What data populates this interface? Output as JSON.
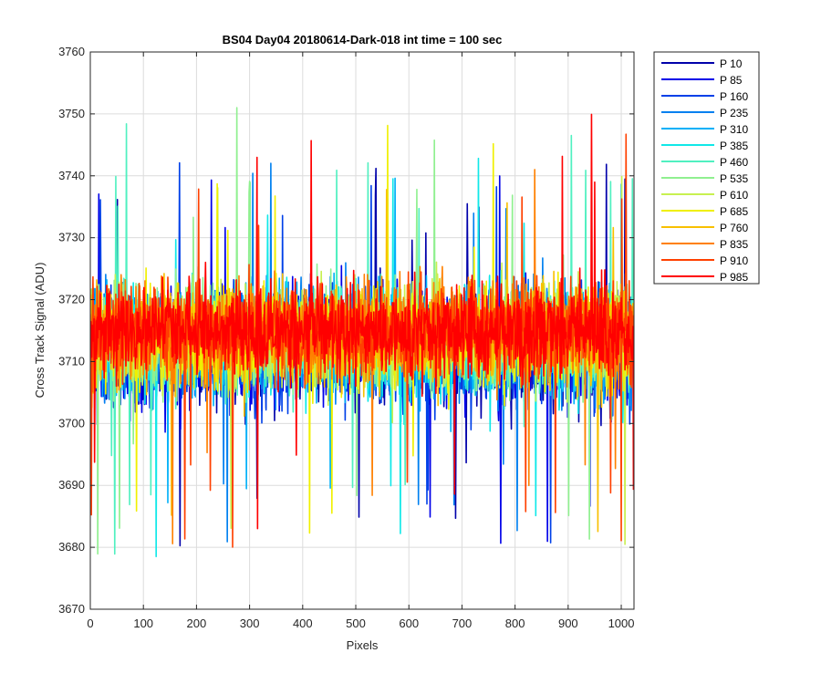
{
  "chart_data": {
    "type": "line",
    "title": "BS04 Day04 20180614-Dark-018 int time = 100 sec",
    "xlabel": "Pixels",
    "ylabel": "Cross Track Signal (ADU)",
    "xlim": [
      0,
      1024
    ],
    "ylim": [
      3670,
      3760
    ],
    "xticks": [
      0,
      100,
      200,
      300,
      400,
      500,
      600,
      700,
      800,
      900,
      1000
    ],
    "yticks": [
      3670,
      3680,
      3690,
      3700,
      3710,
      3720,
      3730,
      3740,
      3750,
      3760
    ],
    "grid": true,
    "legend_position": "outside-top-right",
    "series": [
      {
        "name": "P 10",
        "color": "#0000AA",
        "center": 3712,
        "spread": 13
      },
      {
        "name": "P 85",
        "color": "#0000E8",
        "center": 3712,
        "spread": 14
      },
      {
        "name": "P 160",
        "color": "#0040E8",
        "center": 3712,
        "spread": 13
      },
      {
        "name": "P 235",
        "color": "#0080F0",
        "center": 3713,
        "spread": 13
      },
      {
        "name": "P 310",
        "color": "#00B0F8",
        "center": 3713,
        "spread": 13
      },
      {
        "name": "P 385",
        "color": "#10E8E8",
        "center": 3713,
        "spread": 13
      },
      {
        "name": "P 460",
        "color": "#50F0C0",
        "center": 3713,
        "spread": 12
      },
      {
        "name": "P 535",
        "color": "#90F090",
        "center": 3714,
        "spread": 12
      },
      {
        "name": "P 610",
        "color": "#C8F050",
        "center": 3714,
        "spread": 12
      },
      {
        "name": "P 685",
        "color": "#F0F000",
        "center": 3714,
        "spread": 12
      },
      {
        "name": "P 760",
        "color": "#F8C000",
        "center": 3714,
        "spread": 12
      },
      {
        "name": "P 835",
        "color": "#FF8000",
        "center": 3715,
        "spread": 12
      },
      {
        "name": "P 910",
        "color": "#FF4000",
        "center": 3715,
        "spread": 11
      },
      {
        "name": "P 985",
        "color": "#FF0000",
        "center": 3715,
        "spread": 11
      }
    ]
  }
}
